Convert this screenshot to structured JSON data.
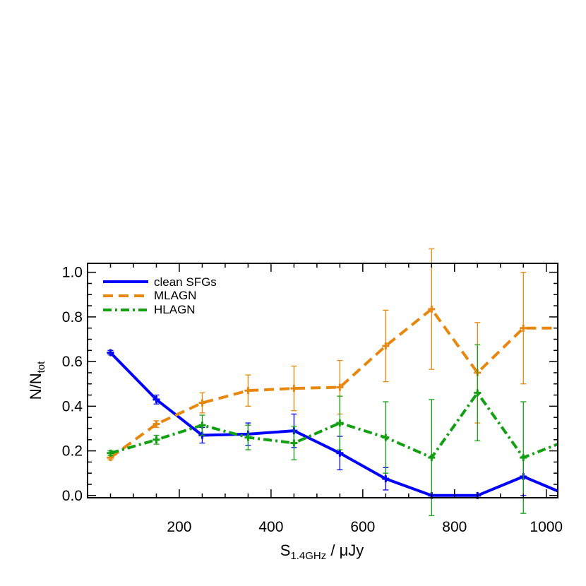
{
  "chart_data": {
    "type": "line",
    "xlabel": {
      "main": "S",
      "sub": "1.4GHz",
      "rest": " / μJy"
    },
    "ylabel": {
      "main": "N/N",
      "sub": "tot"
    },
    "xlim": [
      0,
      1025
    ],
    "ylim": [
      -0.01,
      1.04
    ],
    "xticks": [
      200,
      400,
      600,
      800,
      1000
    ],
    "yticks": [
      0.0,
      0.2,
      0.4,
      0.6,
      0.8,
      1.0
    ],
    "ytick_labels": [
      "0.0",
      "0.2",
      "0.4",
      "0.6",
      "0.8",
      "1.0"
    ],
    "x": [
      50,
      150,
      250,
      350,
      450,
      550,
      650,
      750,
      850,
      950,
      1025
    ],
    "legend": {
      "position": "top-left"
    },
    "series": [
      {
        "name": "clean SFGs",
        "color": "#0000ff",
        "style": "solid",
        "values": [
          0.64,
          0.43,
          0.27,
          0.275,
          0.29,
          0.19,
          0.075,
          0.0,
          0.0,
          0.085,
          0.02
        ],
        "errors": [
          0.01,
          0.02,
          0.035,
          0.05,
          0.075,
          0.075,
          0.05,
          0.0,
          0.0,
          0.085,
          null
        ]
      },
      {
        "name": "MLAGN",
        "color": "#e8870e",
        "style": "dashed",
        "values": [
          0.17,
          0.32,
          0.415,
          0.47,
          0.48,
          0.485,
          0.67,
          0.835,
          0.55,
          0.75,
          0.75
        ],
        "errors": [
          0.01,
          0.015,
          0.045,
          0.07,
          0.1,
          0.12,
          0.16,
          0.27,
          0.225,
          0.25,
          null
        ]
      },
      {
        "name": "HLAGN",
        "color": "#12a012",
        "style": "dashdot",
        "values": [
          0.19,
          0.25,
          0.315,
          0.26,
          0.235,
          0.325,
          0.26,
          0.17,
          0.46,
          0.17,
          0.23
        ],
        "errors": [
          0.01,
          0.02,
          0.045,
          0.055,
          0.075,
          0.12,
          0.16,
          0.26,
          0.215,
          0.25,
          null
        ]
      }
    ]
  }
}
